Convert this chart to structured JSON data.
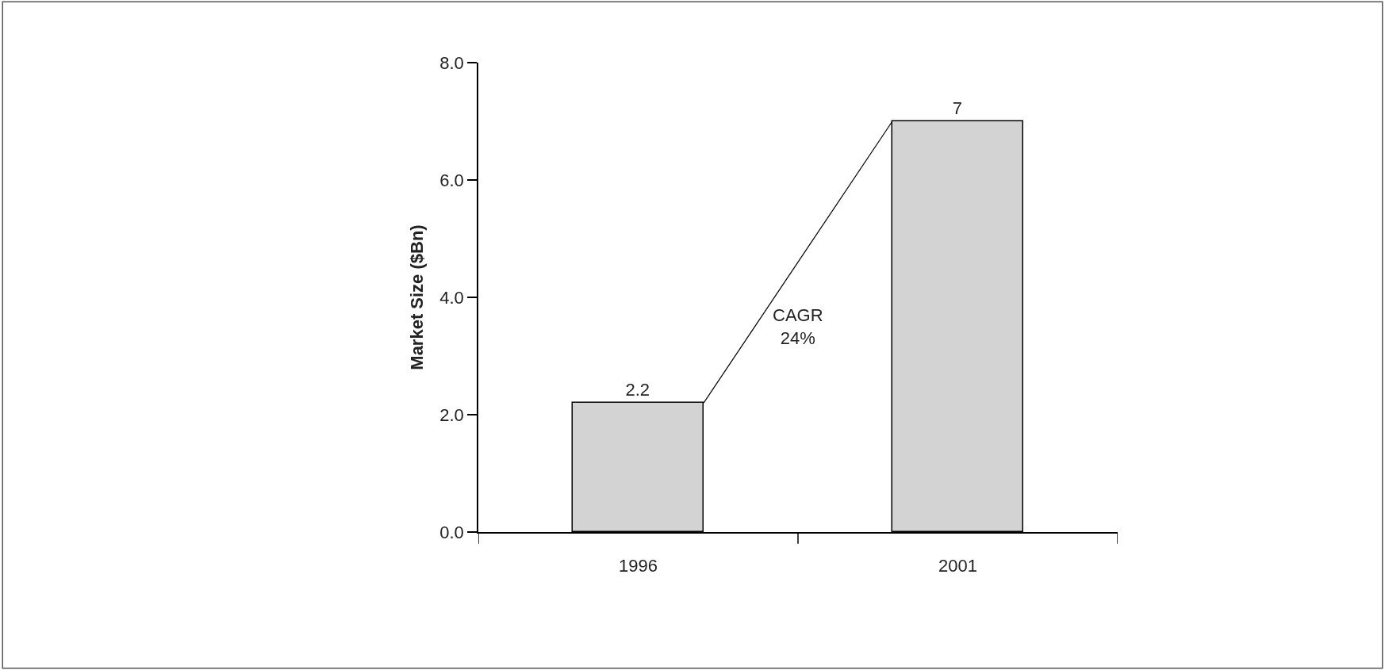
{
  "chart_data": {
    "type": "bar",
    "ylabel": "Market Size ($Bn)",
    "categories": [
      "1996",
      "2001"
    ],
    "values": [
      2.2,
      7
    ],
    "color": "#d3d3d3",
    "data_labels": true,
    "ylim": [
      0,
      8
    ],
    "yticks": [
      {
        "value": 0,
        "label": "0.0"
      },
      {
        "value": 2,
        "label": "2.0"
      },
      {
        "value": 4,
        "label": "4.0"
      },
      {
        "value": 6,
        "label": "6.0"
      },
      {
        "value": 8,
        "label": "8.0"
      }
    ],
    "annotations": [
      "CAGR\n24%"
    ]
  }
}
